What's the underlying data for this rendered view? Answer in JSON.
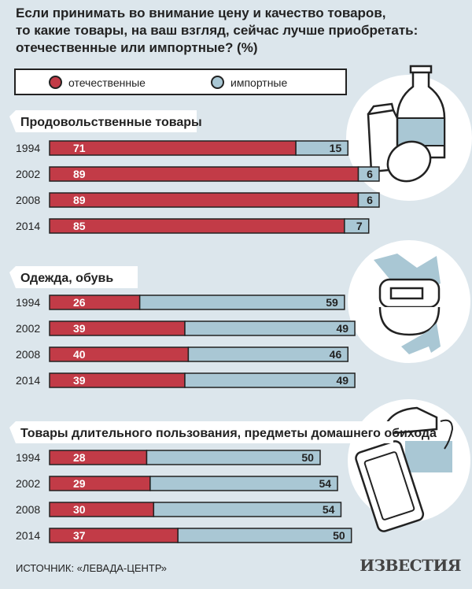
{
  "title": "Если принимать во внимание цену и качество товаров,\nто какие товары, на ваш взгляд, сейчас лучше приобретать:\nотечественные или импортные? (%)",
  "legend": {
    "domestic": "отечественные",
    "imported": "импортные"
  },
  "colors": {
    "domestic": "#c23b47",
    "imported": "#a9c7d4",
    "outline": "#222222",
    "background": "#dce6ec"
  },
  "source": "ИСТОЧНИК: «ЛЕВАДА-ЦЕНТР»",
  "logo": "ИЗВЕСТИЯ",
  "icons": [
    "groceries-icon",
    "clothing-shoes-icon",
    "appliances-icon"
  ],
  "chart_data": [
    {
      "type": "bar",
      "stacked": true,
      "orientation": "horizontal",
      "title": "Продовольственные товары",
      "categories": [
        "1994",
        "2002",
        "2008",
        "2014"
      ],
      "series": [
        {
          "name": "отечественные",
          "values": [
            71,
            89,
            89,
            85
          ]
        },
        {
          "name": "импортные",
          "values": [
            15,
            6,
            6,
            7
          ]
        }
      ]
    },
    {
      "type": "bar",
      "stacked": true,
      "orientation": "horizontal",
      "title": "Одежда, обувь",
      "categories": [
        "1994",
        "2002",
        "2008",
        "2014"
      ],
      "series": [
        {
          "name": "отечественные",
          "values": [
            26,
            39,
            40,
            39
          ]
        },
        {
          "name": "импортные",
          "values": [
            59,
            49,
            46,
            49
          ]
        }
      ]
    },
    {
      "type": "bar",
      "stacked": true,
      "orientation": "horizontal",
      "title": "Товары длительного пользования, предметы домашнего обихода",
      "categories": [
        "1994",
        "2002",
        "2008",
        "2014"
      ],
      "series": [
        {
          "name": "отечественные",
          "values": [
            28,
            29,
            30,
            37
          ]
        },
        {
          "name": "импортные",
          "values": [
            50,
            54,
            54,
            50
          ]
        }
      ]
    }
  ]
}
